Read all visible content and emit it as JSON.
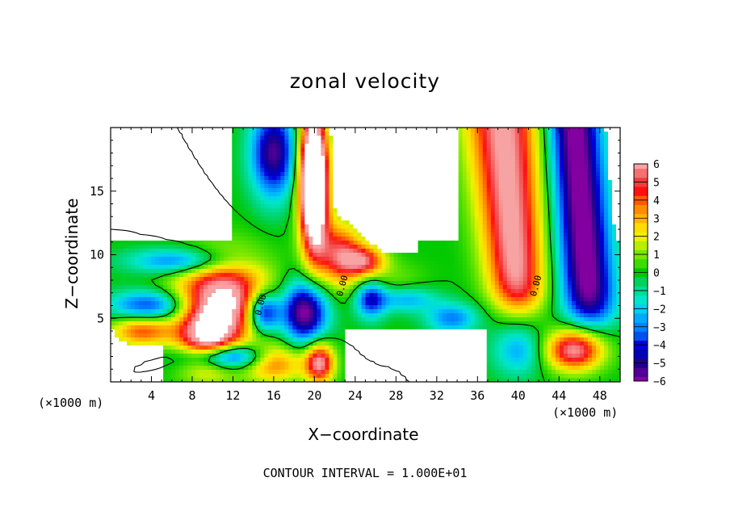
{
  "chart_data": {
    "type": "heatmap",
    "title": "zonal velocity",
    "xlabel": "X−coordinate",
    "ylabel": "Z−coordinate",
    "x_unit": "(×1000 m)",
    "xlim": [
      0,
      50
    ],
    "ylim": [
      0,
      20
    ],
    "x_ticks": [
      4,
      8,
      12,
      16,
      20,
      24,
      28,
      32,
      36,
      40,
      44,
      48
    ],
    "y_ticks": [
      5,
      10,
      15
    ],
    "colorbar": {
      "ticks": [
        6,
        5,
        4,
        3,
        2,
        1,
        0,
        -1,
        -2,
        -3,
        -4,
        -5,
        -6
      ],
      "tick_labels": [
        "6",
        "5",
        "4",
        "3",
        "2",
        "1",
        "0",
        "−1",
        "−2",
        "−3",
        "−4",
        "−5",
        "−6"
      ],
      "levels": [
        {
          "value": 6,
          "color": "#f7a3a3"
        },
        {
          "value": 5.5,
          "color": "#f67070"
        },
        {
          "value": 5,
          "color": "#f23d3d"
        },
        {
          "value": 4.5,
          "color": "#ff1010"
        },
        {
          "value": 4,
          "color": "#ff5a00"
        },
        {
          "value": 3.5,
          "color": "#ff8c00"
        },
        {
          "value": 3,
          "color": "#ffb400"
        },
        {
          "value": 2.5,
          "color": "#ffdc00"
        },
        {
          "value": 2,
          "color": "#f0f000"
        },
        {
          "value": 1.5,
          "color": "#b4f000"
        },
        {
          "value": 1,
          "color": "#78e600"
        },
        {
          "value": 0.5,
          "color": "#3cdc00"
        },
        {
          "value": 0,
          "color": "#00c800"
        },
        {
          "value": -0.5,
          "color": "#00d25a"
        },
        {
          "value": -1,
          "color": "#00dc96"
        },
        {
          "value": -1.5,
          "color": "#00e6c8"
        },
        {
          "value": -2,
          "color": "#00d2f0"
        },
        {
          "value": -2.5,
          "color": "#00aaff"
        },
        {
          "value": -3,
          "color": "#0082ff"
        },
        {
          "value": -3.5,
          "color": "#0050f0"
        },
        {
          "value": -4,
          "color": "#0000dc"
        },
        {
          "value": -4.5,
          "color": "#0000b4"
        },
        {
          "value": -5,
          "color": "#1e008c"
        },
        {
          "value": -5.5,
          "color": "#500096"
        },
        {
          "value": -6,
          "color": "#8200a0"
        }
      ]
    },
    "contour_labels": [
      {
        "text": "0.00",
        "x": 15,
        "y": 6
      },
      {
        "text": "0.00",
        "x": 23,
        "y": 7.5
      },
      {
        "text": "0.00",
        "x": 42,
        "y": 7.5
      }
    ],
    "contour_interval_note": "CONTOUR INTERVAL = 1.000E+01"
  }
}
